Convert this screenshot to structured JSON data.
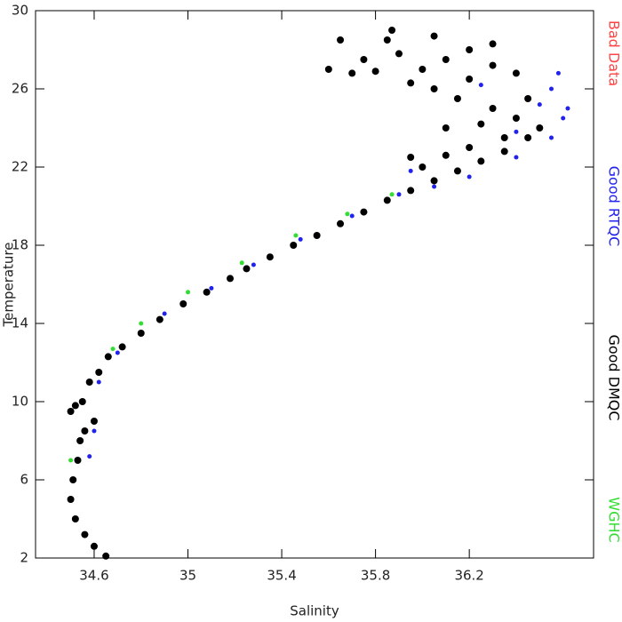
{
  "chart_data": {
    "type": "scatter",
    "x_label": "Salinity",
    "y_label": "Temperature",
    "xlim": [
      34.35,
      36.73
    ],
    "xticks": [
      34.6,
      35.0,
      35.4,
      35.8,
      36.2
    ],
    "ylim": [
      2,
      30
    ],
    "yticks": [
      2,
      6,
      10,
      14,
      18,
      22,
      26,
      30
    ],
    "series": [
      {
        "name": "Bad Data",
        "color": "#ff4444",
        "x": [],
        "values": []
      },
      {
        "name": "Good RTQC",
        "color": "#2222ee",
        "x": [
          34.6,
          34.62,
          34.7,
          34.9,
          35.1,
          35.28,
          35.48,
          35.7,
          35.9,
          36.05,
          36.2,
          36.4,
          36.55,
          36.6,
          36.62,
          36.55,
          36.5,
          36.4,
          35.95,
          36.25,
          34.58,
          36.58
        ],
        "values": [
          8.5,
          11,
          12.5,
          14.5,
          15.8,
          17,
          18.3,
          19.5,
          20.6,
          21.0,
          21.5,
          22.5,
          23.5,
          24.5,
          25,
          26,
          25.2,
          23.8,
          21.8,
          26.2,
          7.2,
          26.8
        ]
      },
      {
        "name": "Good DMQC",
        "color": "#000000",
        "x": [
          34.65,
          34.6,
          34.56,
          34.52,
          34.5,
          34.51,
          34.53,
          34.54,
          34.5,
          34.55,
          34.58,
          34.62,
          34.66,
          34.72,
          34.8,
          34.88,
          34.98,
          35.08,
          35.18,
          35.25,
          35.35,
          35.45,
          35.55,
          35.65,
          35.75,
          35.85,
          35.95,
          36.05,
          36.15,
          36.25,
          36.35,
          36.45,
          36.5,
          36.4,
          36.3,
          36.35,
          36.2,
          36.1,
          36.25,
          36.15,
          36.05,
          36.2,
          35.95,
          36.0,
          36.1,
          36.2,
          36.3,
          36.4,
          35.9,
          35.85,
          35.87,
          36.05,
          35.6,
          35.7,
          35.8,
          35.75,
          36.45,
          36.3,
          36.0,
          36.1,
          35.65,
          35.95,
          34.56,
          34.6,
          34.52
        ],
        "values": [
          2.1,
          2.6,
          3.2,
          4,
          5,
          6,
          7,
          8,
          9.5,
          10,
          11,
          11.5,
          12.3,
          12.8,
          13.5,
          14.2,
          15,
          15.6,
          16.3,
          16.8,
          17.4,
          18,
          18.5,
          19.1,
          19.7,
          20.3,
          20.8,
          21.3,
          21.8,
          22.3,
          22.8,
          23.5,
          24,
          24.5,
          25,
          23.5,
          23,
          22.6,
          24.2,
          25.5,
          26,
          26.5,
          26.3,
          27,
          27.5,
          28,
          27.2,
          26.8,
          27.8,
          28.5,
          29,
          28.7,
          27,
          26.8,
          26.9,
          27.5,
          25.5,
          28.3,
          22,
          24,
          28.5,
          22.5,
          8.5,
          9,
          9.8
        ]
      },
      {
        "name": "WGHC",
        "color": "#33dd33",
        "x": [
          34.5,
          34.8,
          35.0,
          35.23,
          35.46,
          35.68,
          35.87,
          34.68
        ],
        "values": [
          7,
          14,
          15.6,
          17.1,
          18.5,
          19.6,
          20.6,
          12.7
        ]
      }
    ]
  }
}
